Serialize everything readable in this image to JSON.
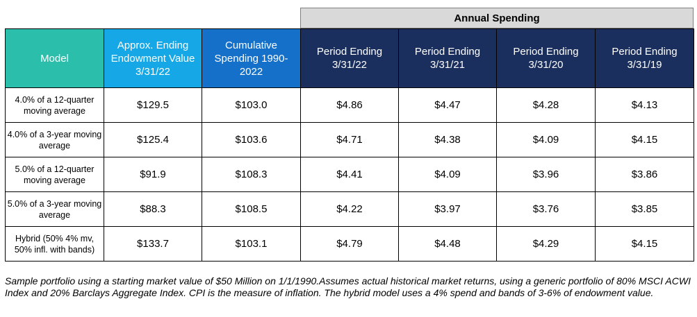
{
  "group_header": "Annual Spending",
  "headers": {
    "model": "Model",
    "endowment": "Approx. Ending Endowment Value 3/31/22",
    "cumulative": "Cumulative Spending 1990-2022",
    "periods": [
      "Period Ending 3/31/22",
      "Period Ending 3/31/21",
      "Period Ending 3/31/20",
      "Period Ending 3/31/19"
    ]
  },
  "rows": [
    {
      "model": "4.0% of a 12-quarter moving average",
      "endowment": "$129.5",
      "cumulative": "$103.0",
      "p1": "$4.86",
      "p2": "$4.47",
      "p3": "$4.28",
      "p4": "$4.13"
    },
    {
      "model": "4.0% of a 3-year moving average",
      "endowment": "$125.4",
      "cumulative": "$103.6",
      "p1": "$4.71",
      "p2": "$4.38",
      "p3": "$4.09",
      "p4": "$4.15"
    },
    {
      "model": "5.0% of a 12-quarter moving average",
      "endowment": "$91.9",
      "cumulative": "$108.3",
      "p1": "$4.41",
      "p2": "$4.09",
      "p3": "$3.96",
      "p4": "$3.86"
    },
    {
      "model": "5.0% of a 3-year moving average",
      "endowment": "$88.3",
      "cumulative": "$108.5",
      "p1": "$4.22",
      "p2": "$3.97",
      "p3": "$3.76",
      "p4": "$3.85"
    },
    {
      "model": "Hybrid (50% 4% mv, 50% infl. with bands)",
      "endowment": "$133.7",
      "cumulative": "$103.1",
      "p1": "$4.79",
      "p2": "$4.48",
      "p3": "$4.29",
      "p4": "$4.15"
    }
  ],
  "footnote": "Sample portfolio using a starting market value of $50 Million on 1/1/1990.Assumes actual historical market returns, using a generic portfolio of 80% MSCI ACWI Index and 20% Barclays Aggregate Index. CPI is the measure of inflation. The hybrid model uses a 4% spend and bands of 3-6% of endowment value.",
  "colors": {
    "model_header": "#2bbfab",
    "endowment_header": "#16a8e6",
    "cumulative_header": "#1470c8",
    "period_header": "#1b2f5e",
    "group_header_bg": "#d9d9d9"
  }
}
